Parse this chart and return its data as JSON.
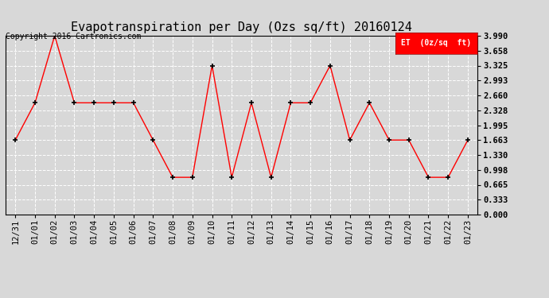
{
  "title": "Evapotranspiration per Day (Ozs sq/ft) 20160124",
  "copyright_text": "Copyright 2016 Cartronics.com",
  "legend_label": "ET  (0z/sq  ft)",
  "x_labels": [
    "12/31",
    "01/01",
    "01/02",
    "01/03",
    "01/04",
    "01/05",
    "01/06",
    "01/07",
    "01/08",
    "01/09",
    "01/10",
    "01/11",
    "01/12",
    "01/13",
    "01/14",
    "01/15",
    "01/16",
    "01/17",
    "01/18",
    "01/19",
    "01/20",
    "01/21",
    "01/22",
    "01/23"
  ],
  "y_values": [
    1.663,
    2.494,
    3.99,
    2.494,
    2.494,
    2.494,
    2.494,
    1.663,
    0.831,
    0.831,
    3.325,
    0.831,
    2.494,
    0.831,
    2.494,
    2.494,
    3.325,
    1.663,
    2.494,
    1.663,
    1.663,
    0.831,
    0.831,
    1.663
  ],
  "y_ticks": [
    0.0,
    0.333,
    0.665,
    0.998,
    1.33,
    1.663,
    1.995,
    2.328,
    2.66,
    2.993,
    3.325,
    3.658,
    3.99
  ],
  "ylim": [
    0.0,
    3.99
  ],
  "line_color": "red",
  "marker_color": "black",
  "background_color": "#d8d8d8",
  "grid_color": "white",
  "legend_bg": "red",
  "legend_text_color": "white",
  "title_fontsize": 11,
  "tick_fontsize": 7.5,
  "copyright_fontsize": 7
}
